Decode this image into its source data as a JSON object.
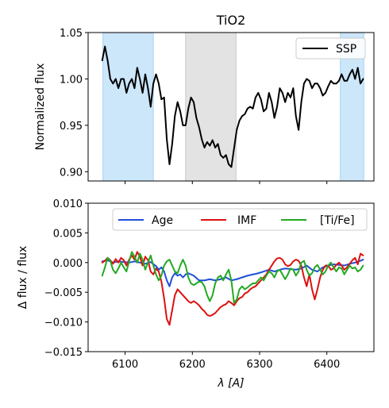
{
  "chart_data": [
    {
      "type": "line",
      "title": "TiO2",
      "xlabel": "",
      "ylabel": "Normalized flux",
      "xlim": [
        6045,
        6470
      ],
      "ylim": [
        0.89,
        1.05
      ],
      "yticks": [
        0.9,
        0.95,
        1.0,
        1.05
      ],
      "ytick_labels": [
        "0.90",
        "0.95",
        "1.00",
        "1.05"
      ],
      "xticks": [
        6100,
        6200,
        6300,
        6400
      ],
      "show_x_tick_labels": false,
      "grid": false,
      "legend": "top-right",
      "bands": [
        {
          "name": "blue-band-left",
          "x0": 6067,
          "x1": 6142,
          "color": "#cce6fa",
          "edge": "#a8d4f5"
        },
        {
          "name": "central-band",
          "x0": 6190,
          "x1": 6265,
          "color": "#e3e3e3",
          "edge": "#c9c9c9"
        },
        {
          "name": "blue-band-right",
          "x0": 6420,
          "x1": 6455,
          "color": "#cce6fa",
          "edge": "#a8d4f5"
        }
      ],
      "series": [
        {
          "name": "SSP",
          "color": "#000000",
          "x": [
            6066,
            6070,
            6074,
            6078,
            6082,
            6086,
            6090,
            6094,
            6098,
            6102,
            6106,
            6110,
            6114,
            6118,
            6122,
            6126,
            6130,
            6134,
            6138,
            6142,
            6146,
            6150,
            6154,
            6158,
            6162,
            6166,
            6170,
            6174,
            6178,
            6182,
            6186,
            6190,
            6194,
            6198,
            6202,
            6206,
            6210,
            6214,
            6218,
            6222,
            6226,
            6230,
            6234,
            6238,
            6242,
            6246,
            6250,
            6254,
            6258,
            6262,
            6266,
            6270,
            6274,
            6278,
            6282,
            6286,
            6290,
            6294,
            6298,
            6302,
            6306,
            6310,
            6314,
            6318,
            6322,
            6326,
            6330,
            6334,
            6338,
            6342,
            6346,
            6350,
            6354,
            6358,
            6362,
            6366,
            6370,
            6374,
            6378,
            6382,
            6386,
            6390,
            6394,
            6398,
            6402,
            6406,
            6410,
            6414,
            6418,
            6422,
            6426,
            6430,
            6434,
            6438,
            6442,
            6446,
            6450,
            6454
          ],
          "y": [
            1.02,
            1.035,
            1.02,
            1.0,
            0.995,
            1.0,
            0.99,
            1.0,
            1.0,
            0.985,
            0.995,
            1.0,
            0.99,
            1.012,
            1.0,
            0.985,
            1.005,
            0.99,
            0.97,
            0.995,
            1.005,
            0.995,
            0.978,
            0.98,
            0.935,
            0.908,
            0.93,
            0.96,
            0.975,
            0.965,
            0.95,
            0.95,
            0.968,
            0.98,
            0.975,
            0.958,
            0.948,
            0.935,
            0.926,
            0.932,
            0.928,
            0.934,
            0.926,
            0.93,
            0.918,
            0.915,
            0.918,
            0.908,
            0.905,
            0.925,
            0.945,
            0.955,
            0.96,
            0.962,
            0.968,
            0.97,
            0.968,
            0.98,
            0.985,
            0.978,
            0.965,
            0.968,
            0.985,
            0.975,
            0.958,
            0.97,
            0.99,
            0.985,
            0.975,
            0.985,
            0.98,
            0.99,
            0.96,
            0.945,
            0.975,
            0.995,
            1.0,
            0.998,
            0.99,
            0.995,
            0.995,
            0.99,
            0.982,
            0.985,
            0.992,
            0.998,
            0.995,
            0.995,
            0.998,
            1.005,
            0.998,
            0.998,
            1.005,
            1.01,
            1.0,
            1.012,
            0.995,
            1.0
          ]
        }
      ]
    },
    {
      "type": "line",
      "title": "",
      "xlabel": "λ [A]",
      "ylabel": "Δ flux / flux",
      "xlim": [
        6045,
        6470
      ],
      "ylim": [
        -0.015,
        0.01
      ],
      "yticks": [
        -0.015,
        -0.01,
        -0.005,
        0.0,
        0.005,
        0.01
      ],
      "ytick_labels": [
        "−0.015",
        "−0.010",
        "−0.005",
        "0.000",
        "0.005",
        "0.010"
      ],
      "xticks": [
        6100,
        6200,
        6300,
        6400
      ],
      "xtick_labels": [
        "6100",
        "6200",
        "6300",
        "6400"
      ],
      "grid": false,
      "legend": "top, 3 columns",
      "series": [
        {
          "name": "Age",
          "color": "#1f4fd6",
          "x": [
            6066,
            6074,
            6082,
            6090,
            6098,
            6106,
            6114,
            6122,
            6130,
            6138,
            6146,
            6150,
            6154,
            6158,
            6162,
            6166,
            6170,
            6174,
            6178,
            6182,
            6186,
            6190,
            6194,
            6198,
            6202,
            6210,
            6218,
            6226,
            6234,
            6242,
            6250,
            6258,
            6266,
            6274,
            6282,
            6290,
            6298,
            6306,
            6314,
            6322,
            6330,
            6338,
            6346,
            6354,
            6362,
            6370,
            6378,
            6386,
            6394,
            6402,
            6410,
            6418,
            6426,
            6434,
            6442,
            6450,
            6454
          ],
          "y": [
            0.0002,
            0.0004,
            0.0,
            0.0002,
            0.0001,
            0.0,
            0.0002,
            0.0,
            -0.0002,
            0.0001,
            -0.0006,
            -0.0012,
            -0.0008,
            -0.0015,
            -0.003,
            -0.004,
            -0.0025,
            -0.0018,
            -0.0022,
            -0.002,
            -0.0025,
            -0.002,
            -0.0018,
            -0.002,
            -0.0022,
            -0.003,
            -0.003,
            -0.0028,
            -0.003,
            -0.0028,
            -0.0025,
            -0.003,
            -0.0028,
            -0.0025,
            -0.0022,
            -0.002,
            -0.0018,
            -0.0015,
            -0.0012,
            -0.0015,
            -0.0012,
            -0.001,
            -0.0011,
            -0.0012,
            -0.001,
            -0.0005,
            -0.0012,
            -0.0015,
            -0.0008,
            -0.0005,
            -0.0003,
            -0.0004,
            -0.0005,
            -0.0002,
            0.0,
            0.0003,
            0.0005
          ]
        },
        {
          "name": "IMF",
          "color": "#dd1111",
          "x": [
            6066,
            6070,
            6074,
            6078,
            6082,
            6086,
            6090,
            6094,
            6098,
            6102,
            6106,
            6110,
            6114,
            6118,
            6122,
            6126,
            6130,
            6134,
            6138,
            6142,
            6146,
            6150,
            6154,
            6158,
            6162,
            6166,
            6170,
            6174,
            6178,
            6182,
            6186,
            6190,
            6194,
            6198,
            6202,
            6206,
            6210,
            6214,
            6218,
            6222,
            6226,
            6230,
            6234,
            6238,
            6242,
            6246,
            6250,
            6254,
            6258,
            6262,
            6266,
            6270,
            6274,
            6278,
            6282,
            6286,
            6290,
            6294,
            6298,
            6302,
            6306,
            6310,
            6314,
            6318,
            6322,
            6326,
            6330,
            6334,
            6338,
            6342,
            6346,
            6350,
            6354,
            6358,
            6362,
            6366,
            6370,
            6374,
            6378,
            6382,
            6386,
            6390,
            6394,
            6398,
            6402,
            6406,
            6410,
            6414,
            6418,
            6422,
            6426,
            6430,
            6434,
            6438,
            6442,
            6446,
            6450,
            6454
          ],
          "y": [
            0.0,
            0.0003,
            0.0008,
            0.0004,
            -0.0002,
            0.0006,
            0.0,
            0.0008,
            0.0004,
            -0.0005,
            0.0005,
            0.0012,
            0.0005,
            0.0018,
            0.001,
            -0.0005,
            0.001,
            0.0004,
            -0.0015,
            -0.002,
            -0.001,
            -0.0015,
            -0.0032,
            -0.006,
            -0.0095,
            -0.0105,
            -0.008,
            -0.0055,
            -0.0045,
            -0.005,
            -0.0055,
            -0.006,
            -0.0065,
            -0.0068,
            -0.0065,
            -0.0068,
            -0.0072,
            -0.0078,
            -0.0082,
            -0.0088,
            -0.009,
            -0.0088,
            -0.0085,
            -0.008,
            -0.0075,
            -0.0072,
            -0.007,
            -0.0065,
            -0.0068,
            -0.0072,
            -0.0065,
            -0.006,
            -0.0058,
            -0.0052,
            -0.005,
            -0.0045,
            -0.0042,
            -0.004,
            -0.0035,
            -0.003,
            -0.0025,
            -0.002,
            -0.0012,
            -0.0005,
            0.0002,
            0.0007,
            0.0008,
            0.0005,
            -0.0003,
            -0.0006,
            -0.0004,
            0.0002,
            0.0005,
            0.0003,
            -0.0005,
            -0.0025,
            -0.004,
            -0.002,
            -0.0045,
            -0.0062,
            -0.0045,
            -0.0025,
            -0.0012,
            -0.0005,
            -0.0005,
            -0.0012,
            -0.001,
            -0.0004,
            0.0,
            -0.0005,
            -0.0012,
            -0.0008,
            -0.0002,
            0.0004,
            0.0008,
            -0.0003,
            0.0015,
            0.0012
          ]
        },
        {
          "name": "[Ti/Fe]",
          "color": "#22aa22",
          "x": [
            6066,
            6070,
            6074,
            6078,
            6082,
            6086,
            6090,
            6094,
            6098,
            6102,
            6106,
            6110,
            6114,
            6118,
            6122,
            6126,
            6130,
            6134,
            6138,
            6142,
            6146,
            6150,
            6154,
            6158,
            6162,
            6166,
            6170,
            6174,
            6178,
            6182,
            6186,
            6190,
            6194,
            6198,
            6202,
            6206,
            6210,
            6214,
            6218,
            6222,
            6226,
            6230,
            6234,
            6238,
            6242,
            6246,
            6250,
            6254,
            6258,
            6262,
            6266,
            6270,
            6274,
            6278,
            6282,
            6286,
            6290,
            6294,
            6298,
            6302,
            6306,
            6310,
            6314,
            6318,
            6322,
            6326,
            6330,
            6334,
            6338,
            6342,
            6346,
            6350,
            6354,
            6358,
            6362,
            6366,
            6370,
            6374,
            6378,
            6382,
            6386,
            6390,
            6394,
            6398,
            6402,
            6406,
            6410,
            6414,
            6418,
            6422,
            6426,
            6430,
            6434,
            6438,
            6442,
            6446,
            6450,
            6454
          ],
          "y": [
            -0.0022,
            -0.0008,
            0.0008,
            0.0003,
            -0.0012,
            -0.0018,
            -0.001,
            0.0,
            -0.0008,
            -0.0015,
            0.0002,
            0.0018,
            0.001,
            0.0,
            0.0015,
            0.0005,
            -0.0012,
            0.0,
            0.0012,
            -0.0005,
            -0.002,
            -0.003,
            -0.0022,
            -0.0005,
            0.0002,
            0.0005,
            -0.0005,
            -0.0015,
            -0.0018,
            -0.0005,
            0.0005,
            -0.0005,
            -0.0025,
            -0.0035,
            -0.0038,
            -0.0035,
            -0.0032,
            -0.0033,
            -0.004,
            -0.0055,
            -0.0065,
            -0.0055,
            -0.0035,
            -0.0025,
            -0.0022,
            -0.003,
            -0.002,
            -0.0012,
            -0.003,
            -0.0068,
            -0.0062,
            -0.0045,
            -0.004,
            -0.0045,
            -0.0042,
            -0.0038,
            -0.0035,
            -0.0035,
            -0.003,
            -0.0025,
            -0.003,
            -0.0022,
            -0.0015,
            -0.0018,
            -0.0025,
            -0.0015,
            -0.0012,
            -0.002,
            -0.0028,
            -0.002,
            -0.001,
            -0.0012,
            -0.0022,
            -0.0015,
            0.0,
            0.0003,
            -0.0012,
            -0.0022,
            -0.0018,
            -0.0008,
            -0.0004,
            -0.0012,
            -0.002,
            -0.0015,
            -0.0005,
            0.0,
            -0.0008,
            -0.0015,
            -0.0008,
            -0.001,
            -0.002,
            -0.0012,
            -0.0005,
            -0.001,
            -0.0008,
            -0.0015,
            -0.0012,
            -0.0005
          ]
        }
      ]
    }
  ]
}
